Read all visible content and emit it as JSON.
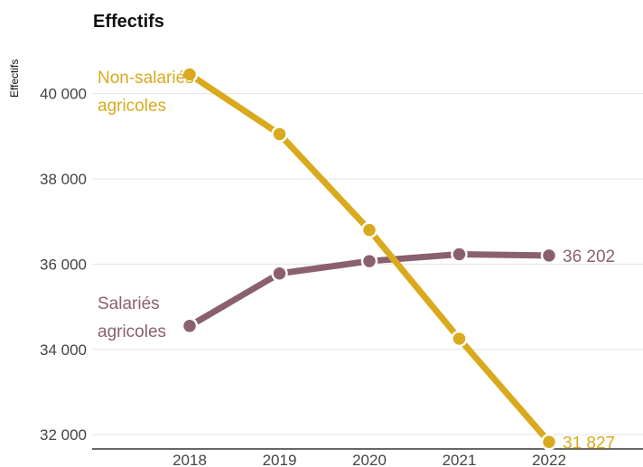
{
  "chart_data": {
    "type": "line",
    "title": "Effectifs",
    "ylabel": "Effectifs",
    "xlabel": "",
    "x": [
      "2018",
      "2019",
      "2020",
      "2021",
      "2022"
    ],
    "ylim": [
      31600,
      41200
    ],
    "yticks": [
      32000,
      34000,
      36000,
      38000,
      40000
    ],
    "ytick_labels": [
      "32 000",
      "34 000",
      "36 000",
      "38 000",
      "40 000"
    ],
    "grid": true,
    "series": [
      {
        "name_lines": [
          "Non-salariés",
          "agricoles"
        ],
        "color": "#d9aa1e",
        "values": [
          40450,
          39050,
          36800,
          34250,
          31827
        ],
        "end_label": "31 827"
      },
      {
        "name_lines": [
          "Salariés",
          "agricoles"
        ],
        "color": "#8a6070",
        "values": [
          34550,
          35780,
          36070,
          36230,
          36202
        ],
        "end_label": "36 202"
      }
    ]
  }
}
